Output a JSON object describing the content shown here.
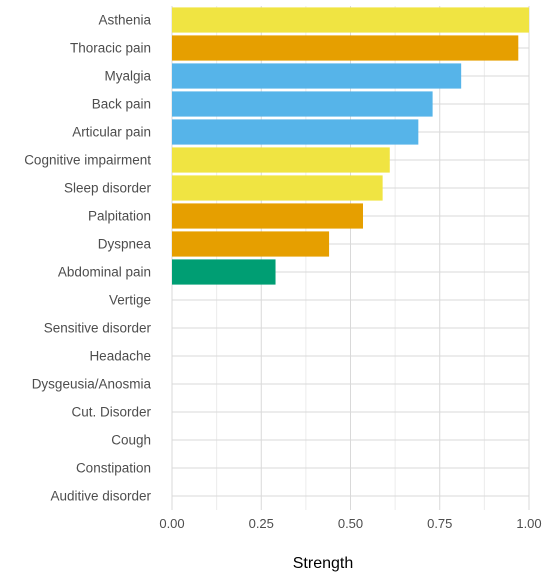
{
  "chart_data": {
    "type": "bar",
    "orientation": "horizontal",
    "title": "",
    "xlabel": "Strength",
    "ylabel": "",
    "xlim": [
      0,
      1.0
    ],
    "x_ticks": [
      0.0,
      0.25,
      0.5,
      0.75,
      1.0
    ],
    "x_tick_labels": [
      "0.00",
      "0.25",
      "0.50",
      "0.75",
      "1.00"
    ],
    "grid": true,
    "legend": "none",
    "categories": [
      "Asthenia",
      "Thoracic pain",
      "Myalgia",
      "Back pain",
      "Articular pain",
      "Cognitive impairment",
      "Sleep disorder",
      "Palpitation",
      "Dyspnea",
      "Abdominal pain",
      "Vertige",
      "Sensitive disorder",
      "Headache",
      "Dysgeusia/Anosmia",
      "Cut. Disorder",
      "Cough",
      "Constipation",
      "Auditive disorder"
    ],
    "values": [
      1.0,
      0.97,
      0.81,
      0.73,
      0.69,
      0.61,
      0.59,
      0.535,
      0.44,
      0.29,
      0,
      0,
      0,
      0,
      0,
      0,
      0,
      0
    ],
    "bar_colors": [
      "#f0e442",
      "#e69f00",
      "#56b4e9",
      "#56b4e9",
      "#56b4e9",
      "#f0e442",
      "#f0e442",
      "#e69f00",
      "#e69f00",
      "#009e73",
      "#56b4e9",
      "#56b4e9",
      "#56b4e9",
      "#56b4e9",
      "#56b4e9",
      "#56b4e9",
      "#56b4e9",
      "#56b4e9"
    ]
  }
}
